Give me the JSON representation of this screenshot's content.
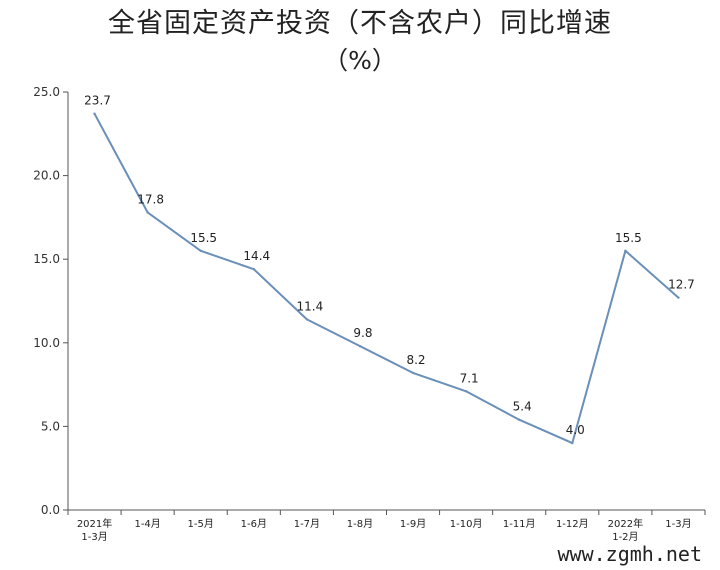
{
  "title": "全省固定资产投资（不含农户）同比增速",
  "subtitle": "（%）",
  "watermark": "www.zgmh.net",
  "colors": {
    "line": "#6a8fb8",
    "axis": "#555555"
  },
  "chart_data": {
    "type": "line",
    "title": "全省固定资产投资（不含农户）同比增速",
    "subtitle": "（%）",
    "xlabel": "",
    "ylabel": "",
    "ylim": [
      0,
      25
    ],
    "yticks": [
      "0.0",
      "5.0",
      "10.0",
      "15.0",
      "20.0",
      "25.0"
    ],
    "grid": false,
    "categories": [
      [
        "2021年",
        "1-3月"
      ],
      [
        "1-4月"
      ],
      [
        "1-5月"
      ],
      [
        "1-6月"
      ],
      [
        "1-7月"
      ],
      [
        "1-8月"
      ],
      [
        "1-9月"
      ],
      [
        "1-10月"
      ],
      [
        "1-11月"
      ],
      [
        "1-12月"
      ],
      [
        "2022年",
        "1-2月"
      ],
      [
        "1-3月"
      ]
    ],
    "values": [
      23.7,
      17.8,
      15.5,
      14.4,
      11.4,
      9.8,
      8.2,
      7.1,
      5.4,
      4.0,
      15.5,
      12.7
    ],
    "data_labels": [
      "23.7",
      "17.8",
      "15.5",
      "14.4",
      "11.4",
      "9.8",
      "8.2",
      "7.1",
      "5.4",
      "4.0",
      "15.5",
      "12.7"
    ]
  }
}
